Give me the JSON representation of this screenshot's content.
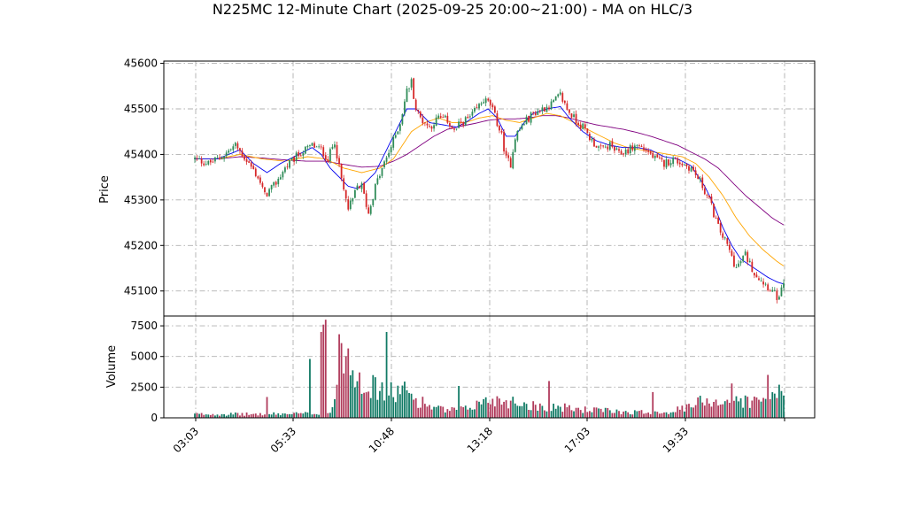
{
  "chart_data": {
    "type": "candlestick",
    "title": "N225MC 12-Minute Chart (2025-09-25 20:00~21:00) - MA on HLC/3",
    "price_panel": {
      "ylabel": "Price",
      "ylim": [
        45045,
        45605
      ],
      "yticks": [
        45100,
        45200,
        45300,
        45400,
        45500,
        45600
      ],
      "grid": true
    },
    "volume_panel": {
      "ylabel": "Volume",
      "ylim": [
        0,
        8300
      ],
      "yticks": [
        0,
        2500,
        5000,
        7500
      ],
      "grid": true
    },
    "x_ticklabels": [
      "03:03",
      "05:33",
      "10:48",
      "13:18",
      "17:03",
      "19:33",
      ""
    ],
    "colors": {
      "up": "#2e8b57",
      "down": "#d62728",
      "vol_up": "#117a65",
      "vol_down": "#b03a5b",
      "ma_fast": "#0000ee",
      "ma_mid": "#ffa500",
      "ma_slow": "#800080"
    },
    "price_anchors": [
      [
        0,
        45390
      ],
      [
        6,
        45380
      ],
      [
        12,
        45395
      ],
      [
        18,
        45420
      ],
      [
        24,
        45380
      ],
      [
        28,
        45350
      ],
      [
        31,
        45310
      ],
      [
        35,
        45330
      ],
      [
        40,
        45370
      ],
      [
        46,
        45400
      ],
      [
        52,
        45420
      ],
      [
        56,
        45410
      ],
      [
        59,
        45390
      ],
      [
        62,
        45430
      ],
      [
        64,
        45370
      ],
      [
        66,
        45320
      ],
      [
        68,
        45280
      ],
      [
        70,
        45300
      ],
      [
        72,
        45330
      ],
      [
        74,
        45330
      ],
      [
        77,
        45270
      ],
      [
        80,
        45330
      ],
      [
        84,
        45380
      ],
      [
        88,
        45430
      ],
      [
        91,
        45470
      ],
      [
        94,
        45540
      ],
      [
        96,
        45560
      ],
      [
        98,
        45500
      ],
      [
        100,
        45480
      ],
      [
        104,
        45460
      ],
      [
        108,
        45480
      ],
      [
        112,
        45475
      ],
      [
        115,
        45450
      ],
      [
        118,
        45470
      ],
      [
        122,
        45480
      ],
      [
        125,
        45500
      ],
      [
        128,
        45520
      ],
      [
        131,
        45510
      ],
      [
        134,
        45470
      ],
      [
        136,
        45440
      ],
      [
        138,
        45390
      ],
      [
        140,
        45380
      ],
      [
        142,
        45440
      ],
      [
        146,
        45470
      ],
      [
        150,
        45490
      ],
      [
        154,
        45500
      ],
      [
        158,
        45510
      ],
      [
        162,
        45530
      ],
      [
        165,
        45500
      ],
      [
        168,
        45480
      ],
      [
        172,
        45460
      ],
      [
        176,
        45430
      ],
      [
        180,
        45410
      ],
      [
        184,
        45420
      ],
      [
        188,
        45400
      ],
      [
        192,
        45410
      ],
      [
        196,
        45420
      ],
      [
        200,
        45410
      ],
      [
        204,
        45390
      ],
      [
        208,
        45380
      ],
      [
        212,
        45390
      ],
      [
        216,
        45380
      ],
      [
        220,
        45370
      ],
      [
        224,
        45340
      ],
      [
        228,
        45300
      ],
      [
        232,
        45240
      ],
      [
        236,
        45200
      ],
      [
        240,
        45150
      ],
      [
        244,
        45180
      ],
      [
        248,
        45140
      ],
      [
        252,
        45120
      ],
      [
        256,
        45100
      ],
      [
        259,
        45080
      ],
      [
        261,
        45120
      ]
    ],
    "volume_anchors": [
      [
        0,
        300
      ],
      [
        30,
        300
      ],
      [
        50,
        350
      ],
      [
        60,
        400
      ],
      [
        63,
        2500
      ],
      [
        65,
        7000
      ],
      [
        67,
        5500
      ],
      [
        70,
        4200
      ],
      [
        73,
        3500
      ],
      [
        76,
        2800
      ],
      [
        80,
        2400
      ],
      [
        85,
        2000
      ],
      [
        89,
        2100
      ],
      [
        92,
        2200
      ],
      [
        95,
        2000
      ],
      [
        98,
        1500
      ],
      [
        102,
        1200
      ],
      [
        106,
        800
      ],
      [
        112,
        600
      ],
      [
        120,
        700
      ],
      [
        126,
        1200
      ],
      [
        132,
        1500
      ],
      [
        138,
        1400
      ],
      [
        145,
        1200
      ],
      [
        150,
        1000
      ],
      [
        160,
        900
      ],
      [
        170,
        700
      ],
      [
        180,
        600
      ],
      [
        190,
        500
      ],
      [
        200,
        450
      ],
      [
        210,
        500
      ],
      [
        220,
        900
      ],
      [
        226,
        1600
      ],
      [
        232,
        1300
      ],
      [
        238,
        1500
      ],
      [
        244,
        1400
      ],
      [
        250,
        1300
      ],
      [
        256,
        1600
      ],
      [
        261,
        1500
      ]
    ],
    "volume_spikes": [
      [
        12,
        300
      ],
      [
        32,
        1700
      ],
      [
        51,
        4800
      ],
      [
        56,
        7000
      ],
      [
        57,
        7600
      ],
      [
        58,
        8000
      ],
      [
        73,
        3700
      ],
      [
        85,
        7000
      ],
      [
        117,
        2600
      ],
      [
        157,
        3000
      ],
      [
        203,
        2100
      ],
      [
        224,
        1800
      ],
      [
        238,
        2800
      ],
      [
        254,
        3500
      ],
      [
        259,
        2700
      ]
    ],
    "ma_anchors": {
      "fast": [
        [
          0,
          45390
        ],
        [
          10,
          45390
        ],
        [
          20,
          45410
        ],
        [
          26,
          45380
        ],
        [
          32,
          45360
        ],
        [
          38,
          45380
        ],
        [
          44,
          45395
        ],
        [
          52,
          45415
        ],
        [
          56,
          45400
        ],
        [
          60,
          45370
        ],
        [
          64,
          45350
        ],
        [
          68,
          45330
        ],
        [
          72,
          45325
        ],
        [
          76,
          45340
        ],
        [
          80,
          45360
        ],
        [
          84,
          45400
        ],
        [
          88,
          45440
        ],
        [
          92,
          45480
        ],
        [
          94,
          45500
        ],
        [
          98,
          45500
        ],
        [
          104,
          45470
        ],
        [
          110,
          45465
        ],
        [
          116,
          45460
        ],
        [
          120,
          45470
        ],
        [
          126,
          45490
        ],
        [
          130,
          45500
        ],
        [
          134,
          45480
        ],
        [
          138,
          45440
        ],
        [
          142,
          45440
        ],
        [
          146,
          45470
        ],
        [
          150,
          45490
        ],
        [
          156,
          45500
        ],
        [
          162,
          45505
        ],
        [
          166,
          45480
        ],
        [
          172,
          45450
        ],
        [
          178,
          45430
        ],
        [
          184,
          45420
        ],
        [
          190,
          45415
        ],
        [
          196,
          45415
        ],
        [
          202,
          45410
        ],
        [
          208,
          45395
        ],
        [
          214,
          45390
        ],
        [
          220,
          45375
        ],
        [
          226,
          45330
        ],
        [
          230,
          45290
        ],
        [
          234,
          45240
        ],
        [
          238,
          45200
        ],
        [
          242,
          45170
        ],
        [
          248,
          45150
        ],
        [
          254,
          45130
        ],
        [
          258,
          45120
        ],
        [
          261,
          45115
        ]
      ],
      "mid": [
        [
          0,
          45390
        ],
        [
          10,
          45390
        ],
        [
          20,
          45400
        ],
        [
          30,
          45390
        ],
        [
          40,
          45385
        ],
        [
          50,
          45395
        ],
        [
          58,
          45390
        ],
        [
          66,
          45370
        ],
        [
          74,
          45360
        ],
        [
          82,
          45370
        ],
        [
          88,
          45390
        ],
        [
          92,
          45420
        ],
        [
          96,
          45450
        ],
        [
          102,
          45470
        ],
        [
          108,
          45480
        ],
        [
          114,
          45470
        ],
        [
          120,
          45470
        ],
        [
          126,
          45480
        ],
        [
          132,
          45485
        ],
        [
          138,
          45475
        ],
        [
          144,
          45470
        ],
        [
          150,
          45480
        ],
        [
          156,
          45490
        ],
        [
          162,
          45485
        ],
        [
          168,
          45470
        ],
        [
          174,
          45455
        ],
        [
          180,
          45440
        ],
        [
          186,
          45425
        ],
        [
          192,
          45415
        ],
        [
          198,
          45410
        ],
        [
          204,
          45405
        ],
        [
          210,
          45400
        ],
        [
          216,
          45395
        ],
        [
          222,
          45380
        ],
        [
          228,
          45350
        ],
        [
          234,
          45310
        ],
        [
          240,
          45260
        ],
        [
          246,
          45220
        ],
        [
          252,
          45190
        ],
        [
          258,
          45165
        ],
        [
          261,
          45155
        ]
      ],
      "slow": [
        [
          0,
          45390
        ],
        [
          10,
          45390
        ],
        [
          20,
          45395
        ],
        [
          30,
          45392
        ],
        [
          40,
          45388
        ],
        [
          50,
          45385
        ],
        [
          58,
          45385
        ],
        [
          66,
          45378
        ],
        [
          74,
          45372
        ],
        [
          82,
          45374
        ],
        [
          88,
          45385
        ],
        [
          94,
          45400
        ],
        [
          100,
          45420
        ],
        [
          106,
          45440
        ],
        [
          112,
          45455
        ],
        [
          118,
          45462
        ],
        [
          124,
          45468
        ],
        [
          130,
          45475
        ],
        [
          136,
          45478
        ],
        [
          142,
          45478
        ],
        [
          148,
          45480
        ],
        [
          154,
          45485
        ],
        [
          160,
          45485
        ],
        [
          166,
          45480
        ],
        [
          172,
          45472
        ],
        [
          178,
          45465
        ],
        [
          184,
          45460
        ],
        [
          190,
          45455
        ],
        [
          196,
          45448
        ],
        [
          202,
          45440
        ],
        [
          208,
          45430
        ],
        [
          214,
          45420
        ],
        [
          220,
          45405
        ],
        [
          226,
          45390
        ],
        [
          232,
          45370
        ],
        [
          238,
          45340
        ],
        [
          244,
          45310
        ],
        [
          250,
          45285
        ],
        [
          256,
          45260
        ],
        [
          261,
          45245
        ]
      ]
    },
    "n_bars": 262
  }
}
